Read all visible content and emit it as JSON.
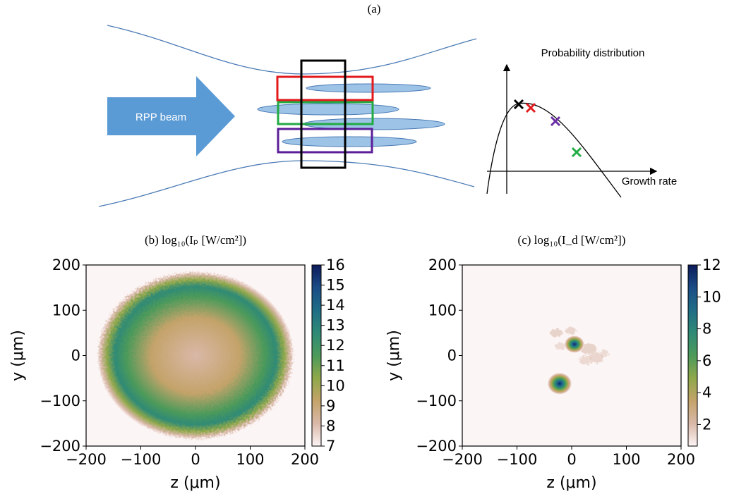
{
  "panel_a": {
    "label": "(a)",
    "beam_label": "RPP beam",
    "plot_y_label": "Probability distribution",
    "plot_x_label": "Growth rate"
  },
  "chart_data": [
    {
      "type": "heatmap",
      "title": "(b) log₁₀(Iₚ [W/cm²])",
      "xlabel": "z (μm)",
      "ylabel": "y (μm)",
      "xlim": [
        -200,
        200
      ],
      "ylim": [
        -200,
        200
      ],
      "xticks": [
        {
          "value": -200,
          "label": "−200"
        },
        {
          "value": -100,
          "label": "−100"
        },
        0,
        100,
        200
      ],
      "yticks": [
        {
          "value": -200,
          "label": "−200"
        },
        {
          "value": -100,
          "label": "−100"
        },
        0,
        100,
        200
      ],
      "clim": [
        7,
        16
      ],
      "cticks": [
        7,
        8,
        9,
        10,
        11,
        12,
        13,
        14,
        15,
        16
      ],
      "colormap": [
        "#fcf5f5",
        "#d9b8a8",
        "#c4a36a",
        "#8fa84a",
        "#4c9a5a",
        "#2f8a76",
        "#1f6d86",
        "#1a4c86",
        "#0d1b5a"
      ]
    },
    {
      "type": "heatmap",
      "title": "(c) log₁₀(I_d [W/cm²])",
      "xlabel": "z (μm)",
      "ylabel": "y (μm)",
      "xlim": [
        -200,
        200
      ],
      "ylim": [
        -200,
        200
      ],
      "xticks": [
        {
          "value": -200,
          "label": "−200"
        },
        {
          "value": -100,
          "label": "−100"
        },
        0,
        100,
        200
      ],
      "yticks": [
        {
          "value": -200,
          "label": "−200"
        },
        {
          "value": -100,
          "label": "−100"
        },
        0,
        100,
        200
      ],
      "clim": [
        0.65,
        12
      ],
      "cticks": [
        2,
        4,
        6,
        8,
        10,
        12
      ],
      "colormap": [
        "#fcf5f5",
        "#d9b8a8",
        "#c4a36a",
        "#8fa84a",
        "#4c9a5a",
        "#2f8a76",
        "#1f6d86",
        "#1a4c86",
        "#0d1b5a"
      ]
    }
  ]
}
